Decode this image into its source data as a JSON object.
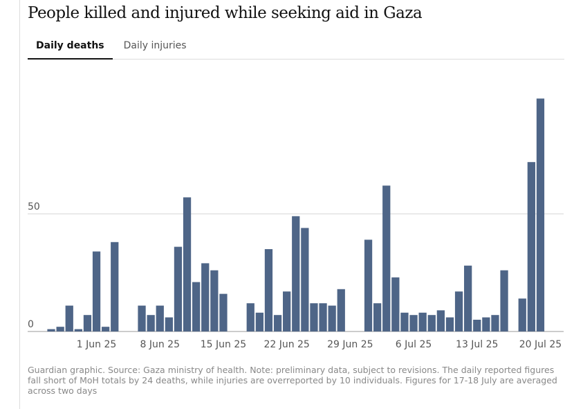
{
  "chart_data": {
    "type": "bar",
    "title": "People killed and injured while seeking aid in Gaza",
    "tabs": [
      "Daily deaths",
      "Daily injuries"
    ],
    "active_tab": 0,
    "categories": [
      null,
      null,
      null,
      null,
      null,
      "1 Jun 25",
      null,
      null,
      null,
      null,
      null,
      null,
      "8 Jun 25",
      null,
      null,
      null,
      null,
      null,
      null,
      "15 Jun 25",
      null,
      null,
      null,
      null,
      null,
      null,
      "22 Jun 25",
      null,
      null,
      null,
      null,
      null,
      null,
      "29 Jun 25",
      null,
      null,
      null,
      null,
      null,
      null,
      "6 Jul 25",
      null,
      null,
      null,
      null,
      null,
      null,
      "13 Jul 25",
      null,
      null,
      null,
      null,
      null,
      null,
      "20 Jul 25"
    ],
    "values": [
      1,
      2,
      11,
      1,
      7,
      34,
      2,
      38,
      null,
      null,
      11,
      7,
      11,
      6,
      36,
      57,
      21,
      29,
      26,
      16,
      null,
      null,
      12,
      8,
      35,
      7,
      17,
      49,
      44,
      12,
      12,
      11,
      18,
      null,
      null,
      39,
      12,
      62,
      23,
      8,
      7,
      8,
      7,
      9,
      6,
      17,
      28,
      5,
      6,
      7,
      26,
      null,
      14,
      72,
      99
    ],
    "color": "#4e6587",
    "ylim": [
      0,
      110
    ],
    "yticks": [
      0,
      50
    ],
    "grid": true,
    "note": "Guardian graphic. Source: Gaza ministry of health. Note: preliminary data, subject to revisions. The daily reported figures fall short of MoH totals by 24 deaths, while injuries are overreported by 10 individuals. Figures for 17-18 July are averaged across two days"
  }
}
